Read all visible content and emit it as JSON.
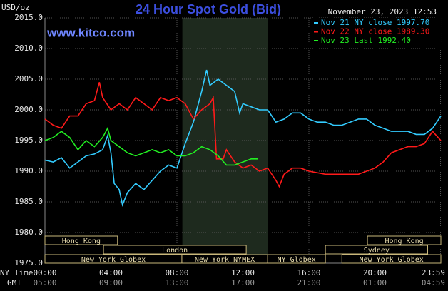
{
  "chart_data": {
    "type": "line",
    "title": "24 Hour Spot Gold (Bid)",
    "website": "www.kitco.com",
    "y_label": "USD/oz",
    "timestamp": "November 23, 2023 12:53",
    "x_row_label_ny": "NY Time",
    "x_row_label_gmt": "GMT",
    "xlim": [
      0,
      24
    ],
    "ylim": [
      1975,
      2015
    ],
    "yticks": [
      {
        "value": 1975,
        "label": "1975.0"
      },
      {
        "value": 1980,
        "label": "1980.0"
      },
      {
        "value": 1985,
        "label": "1985.0"
      },
      {
        "value": 1990,
        "label": "1990.0"
      },
      {
        "value": 1995,
        "label": "1995.0"
      },
      {
        "value": 2000,
        "label": "2000.0"
      },
      {
        "value": 2005,
        "label": "2005.0"
      },
      {
        "value": 2010,
        "label": "2010.0"
      },
      {
        "value": 2015,
        "label": "2015.0"
      }
    ],
    "xticks": [
      {
        "value": 0,
        "label": "00:00"
      },
      {
        "value": 4,
        "label": "04:00"
      },
      {
        "value": 8,
        "label": "08:00"
      },
      {
        "value": 12,
        "label": "12:00"
      },
      {
        "value": 16,
        "label": "16:00"
      },
      {
        "value": 20,
        "label": "20:00"
      },
      {
        "value": 23.98,
        "label": "23:59"
      }
    ],
    "xtick_labels_gmt": [
      "05:00",
      "09:00",
      "13:00",
      "17:00",
      "21:00",
      "01:00",
      "04:59"
    ],
    "grid": true,
    "shaded_region": [
      8.33,
      13.5
    ],
    "session_rows": [
      [
        {
          "name": "Hong Kong",
          "start": 0,
          "end": 4.4
        },
        {
          "name": "Hong Kong",
          "start": 19.55,
          "end": 24
        }
      ],
      [
        {
          "name": "London",
          "start": 3.55,
          "end": 12.2
        },
        {
          "name": "Sydney",
          "start": 17,
          "end": 23.2
        }
      ],
      [
        {
          "name": "New York Globex",
          "start": 0,
          "end": 8.3
        },
        {
          "name": "New York NYMEX",
          "start": 8.3,
          "end": 13.5
        },
        {
          "name": "NY Globex",
          "start": 13.5,
          "end": 17
        },
        {
          "name": "New York Globex",
          "start": 18,
          "end": 24
        }
      ]
    ],
    "series": [
      {
        "name": "Nov 21 NY close 1997.70",
        "color": "#33ccff",
        "x": [
          0,
          0.5,
          1,
          1.5,
          2,
          2.5,
          3,
          3.5,
          3.8,
          4,
          4.2,
          4.5,
          4.7,
          5,
          5.5,
          6,
          6.5,
          7,
          7.5,
          8,
          8.5,
          9,
          9.5,
          9.8,
          10,
          10.5,
          11,
          11.5,
          11.8,
          12,
          12.5,
          13,
          13.5,
          14,
          14.5,
          15,
          15.5,
          16,
          16.5,
          17,
          17.5,
          18,
          18.5,
          19,
          19.5,
          20,
          20.5,
          21,
          21.5,
          22,
          22.5,
          23,
          23.5,
          24
        ],
        "values": [
          1991.8,
          1991.5,
          1992.2,
          1990.5,
          1991.5,
          1992.5,
          1992.8,
          1993.5,
          1995.8,
          1993,
          1988,
          1987,
          1984.5,
          1986.5,
          1988,
          1987,
          1988.5,
          1990,
          1991,
          1990.5,
          1994.5,
          1998,
          2003,
          2006.5,
          2004,
          2005,
          2004,
          2003,
          1999.5,
          2001,
          2000.5,
          2000,
          2000,
          1998,
          1998.5,
          1999.5,
          1999.5,
          1998.5,
          1998,
          1998,
          1997.5,
          1997.5,
          1998,
          1998.5,
          1998.5,
          1997.5,
          1997,
          1996.5,
          1996.5,
          1996.5,
          1996,
          1996,
          1997,
          1999
        ]
      },
      {
        "name": "Nov 22 NY close 1989.30",
        "color": "#ff1a1a",
        "x": [
          0,
          0.5,
          1,
          1.5,
          2,
          2.5,
          3,
          3.3,
          3.5,
          4,
          4.5,
          5,
          5.5,
          6,
          6.5,
          7,
          7.5,
          8,
          8.5,
          9,
          9.5,
          10,
          10.2,
          10.4,
          10.8,
          11,
          11.5,
          12,
          12.5,
          13,
          13.5,
          14,
          14.2,
          14.5,
          15,
          15.5,
          16,
          17,
          18,
          19,
          19.5,
          20,
          20.5,
          21,
          21.5,
          22,
          22.5,
          23,
          23.5,
          24
        ],
        "values": [
          1998.5,
          1997.5,
          1997,
          1999,
          1999,
          2001,
          2001.5,
          2004.5,
          2002,
          2000,
          2001,
          2000,
          2002,
          2001,
          2000,
          2002,
          2001.5,
          2002,
          2001,
          1998.5,
          2000,
          2001,
          2002,
          1992,
          1992,
          1993.5,
          1991.5,
          1990.5,
          1991,
          1990,
          1990.5,
          1988.5,
          1987.5,
          1989.5,
          1990.5,
          1990.5,
          1990,
          1989.5,
          1989.5,
          1989.5,
          1990,
          1990.5,
          1991.5,
          1993,
          1993.5,
          1994,
          1994,
          1994.5,
          1996.5,
          1995
        ]
      },
      {
        "name": "Nov 23 Last 1992.40",
        "color": "#22ee22",
        "x": [
          0,
          0.5,
          1,
          1.5,
          2,
          2.5,
          3,
          3.5,
          3.8,
          4,
          4.5,
          5,
          5.5,
          6,
          6.5,
          7,
          7.5,
          8,
          8.5,
          9,
          9.5,
          10,
          10.5,
          11,
          11.5,
          12,
          12.5,
          12.9
        ],
        "values": [
          1995,
          1995.5,
          1996.5,
          1995.5,
          1993.5,
          1995,
          1994,
          1995.5,
          1997,
          1995,
          1994,
          1993,
          1992.5,
          1993,
          1993.5,
          1993,
          1993.5,
          1992.5,
          1992.5,
          1993,
          1994,
          1993.5,
          1992.5,
          1991,
          1991,
          1991.5,
          1992,
          1992
        ]
      }
    ]
  }
}
